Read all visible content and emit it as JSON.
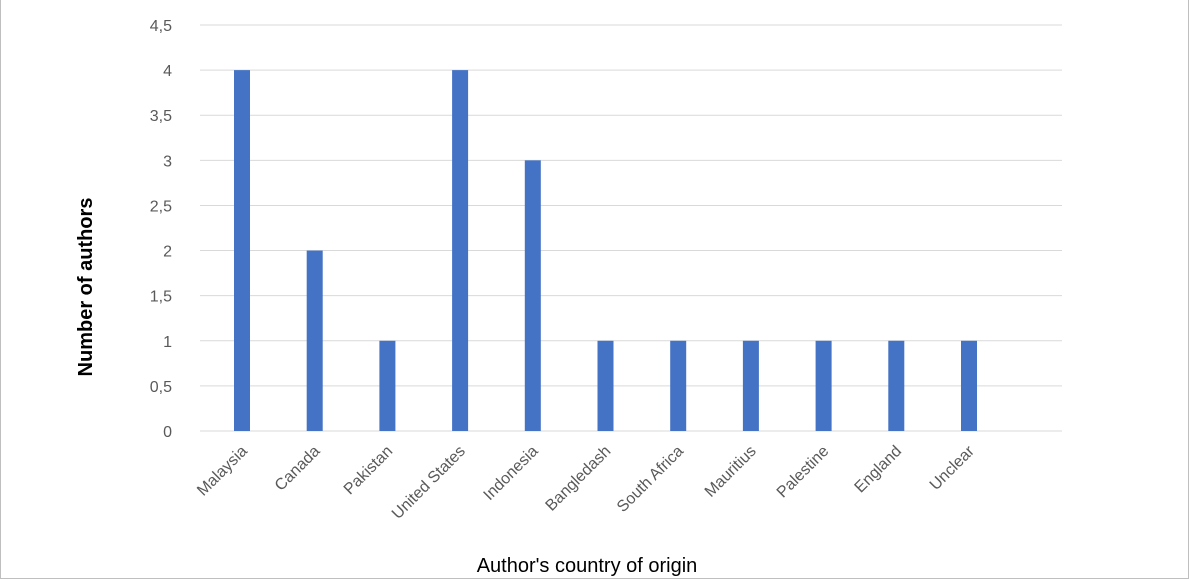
{
  "chart_data": {
    "type": "bar",
    "categories": [
      "Malaysia",
      "Canada",
      "Pakistan",
      "United States",
      "Indonesia",
      "Bangledash",
      "South Africa",
      "Mauritius",
      "Palestine",
      "England",
      "Unclear"
    ],
    "values": [
      4,
      2,
      1,
      4,
      3,
      1,
      1,
      1,
      1,
      1,
      1
    ],
    "xlabel": "Author's country of origin",
    "ylabel": "Number of authors",
    "ylim": [
      0,
      4.5
    ],
    "yticks": [
      "0",
      "0,5",
      "1",
      "1,5",
      "2",
      "2,5",
      "3",
      "3,5",
      "4",
      "4,5"
    ],
    "grid": true,
    "bar_color": "#4472c4",
    "grid_color": "#d9d9d9"
  }
}
